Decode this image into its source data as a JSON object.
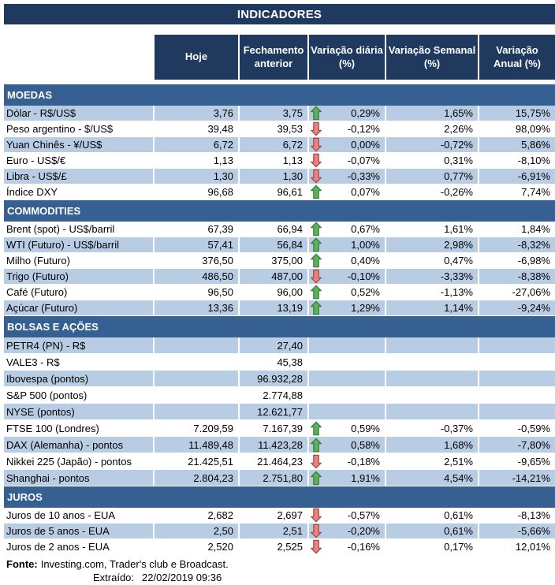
{
  "title": "INDICADORES",
  "colors": {
    "header_navy": "#1F3A5E",
    "section_blue": "#366092",
    "row_shaded_blue": "#B8CCE4",
    "up_arrow_fill": "#5BB25A",
    "up_arrow_stroke": "#357A38",
    "down_arrow_fill": "#E8837E",
    "down_arrow_stroke": "#9C4744"
  },
  "columns": [
    "",
    "Hoje",
    "Fechamento anterior",
    "Variação diária (%)",
    "Variação Semanal (%)",
    "Variação Anual (%)"
  ],
  "sections": [
    {
      "name": "MOEDAS",
      "start_shaded": true,
      "rows": [
        {
          "label": "Dólar - R$/US$",
          "hoje": "3,76",
          "fechamento": "3,75",
          "arrow": "up",
          "diaria": "0,29%",
          "semanal": "1,65%",
          "anual": "15,75%"
        },
        {
          "label": "Peso argentino - $/US$",
          "hoje": "39,48",
          "fechamento": "39,53",
          "arrow": "down",
          "diaria": "-0,12%",
          "semanal": "2,26%",
          "anual": "98,09%"
        },
        {
          "label": "Yuan Chinês - ¥/US$",
          "hoje": "6,72",
          "fechamento": "6,72",
          "arrow": "down",
          "diaria": "0,00%",
          "semanal": "-0,72%",
          "anual": "5,86%"
        },
        {
          "label": "Euro - US$/€",
          "hoje": "1,13",
          "fechamento": "1,13",
          "arrow": "down",
          "diaria": "-0,07%",
          "semanal": "0,31%",
          "anual": "-8,10%"
        },
        {
          "label": "Libra - US$/£",
          "hoje": "1,30",
          "fechamento": "1,30",
          "arrow": "down",
          "diaria": "-0,33%",
          "semanal": "0,77%",
          "anual": "-6,91%"
        },
        {
          "label": "Índice DXY",
          "hoje": "96,68",
          "fechamento": "96,61",
          "arrow": "up",
          "diaria": "0,07%",
          "semanal": "-0,26%",
          "anual": "7,74%"
        }
      ]
    },
    {
      "name": "COMMODITIES",
      "start_shaded": false,
      "rows": [
        {
          "label": "Brent (spot) - US$/barril",
          "hoje": "67,39",
          "fechamento": "66,94",
          "arrow": "up",
          "diaria": "0,67%",
          "semanal": "1,61%",
          "anual": "1,84%"
        },
        {
          "label": "WTI (Futuro) - US$/barril",
          "hoje": "57,41",
          "fechamento": "56,84",
          "arrow": "up",
          "diaria": "1,00%",
          "semanal": "2,98%",
          "anual": "-8,32%"
        },
        {
          "label": "Milho (Futuro)",
          "hoje": "376,50",
          "fechamento": "375,00",
          "arrow": "up",
          "diaria": "0,40%",
          "semanal": "0,47%",
          "anual": "-6,98%"
        },
        {
          "label": "Trigo (Futuro)",
          "hoje": "486,50",
          "fechamento": "487,00",
          "arrow": "down",
          "diaria": "-0,10%",
          "semanal": "-3,33%",
          "anual": "-8,38%"
        },
        {
          "label": "Café (Futuro)",
          "hoje": "96,50",
          "fechamento": "96,00",
          "arrow": "up",
          "diaria": "0,52%",
          "semanal": "-1,13%",
          "anual": "-27,06%"
        },
        {
          "label": "Açúcar (Futuro)",
          "hoje": "13,36",
          "fechamento": "13,19",
          "arrow": "up",
          "diaria": "1,29%",
          "semanal": "1,14%",
          "anual": "-9,24%"
        }
      ]
    },
    {
      "name": "BOLSAS E AÇÕES",
      "start_shaded": true,
      "rows": [
        {
          "label": "PETR4 (PN) - R$",
          "hoje": "",
          "fechamento": "27,40",
          "arrow": "",
          "diaria": "",
          "semanal": "",
          "anual": ""
        },
        {
          "label": "VALE3 - R$",
          "hoje": "",
          "fechamento": "45,38",
          "arrow": "",
          "diaria": "",
          "semanal": "",
          "anual": ""
        },
        {
          "label": "Ibovespa (pontos)",
          "hoje": "",
          "fechamento": "96.932,28",
          "arrow": "",
          "diaria": "",
          "semanal": "",
          "anual": ""
        },
        {
          "label": "S&P 500 (pontos)",
          "hoje": "",
          "fechamento": "2.774,88",
          "arrow": "",
          "diaria": "",
          "semanal": "",
          "anual": ""
        },
        {
          "label": "NYSE (pontos)",
          "hoje": "",
          "fechamento": "12.621,77",
          "arrow": "",
          "diaria": "",
          "semanal": "",
          "anual": ""
        },
        {
          "label": "FTSE 100 (Londres)",
          "hoje": "7.209,59",
          "fechamento": "7.167,39",
          "arrow": "up",
          "diaria": "0,59%",
          "semanal": "-0,37%",
          "anual": "-0,59%"
        },
        {
          "label": "DAX (Alemanha) - pontos",
          "hoje": "11.489,48",
          "fechamento": "11.423,28",
          "arrow": "up",
          "diaria": "0,58%",
          "semanal": "1,68%",
          "anual": "-7,80%"
        },
        {
          "label": "Nikkei 225 (Japão) - pontos",
          "hoje": "21.425,51",
          "fechamento": "21.464,23",
          "arrow": "down",
          "diaria": "-0,18%",
          "semanal": "2,51%",
          "anual": "-9,65%"
        },
        {
          "label": "Shanghai - pontos",
          "hoje": "2.804,23",
          "fechamento": "2.751,80",
          "arrow": "up",
          "diaria": "1,91%",
          "semanal": "4,54%",
          "anual": "-14,21%"
        }
      ]
    },
    {
      "name": "JUROS",
      "start_shaded": false,
      "rows": [
        {
          "label": "Juros de 10 anos - EUA",
          "hoje": "2,682",
          "fechamento": "2,697",
          "arrow": "down",
          "diaria": "-0,57%",
          "semanal": "0,61%",
          "anual": "-8,13%"
        },
        {
          "label": "Juros de 5 anos - EUA",
          "hoje": "2,50",
          "fechamento": "2,51",
          "arrow": "down",
          "diaria": "-0,20%",
          "semanal": "0,61%",
          "anual": "-5,66%"
        },
        {
          "label": "Juros de 2 anos - EUA",
          "hoje": "2,520",
          "fechamento": "2,525",
          "arrow": "down",
          "diaria": "-0,16%",
          "semanal": "0,17%",
          "anual": "12,01%"
        }
      ]
    }
  ],
  "footer": {
    "fonte_label": "Fonte:",
    "fonte_text": "Investing.com, Trader's club e Broadcast.",
    "extraido_label": "Extraído:",
    "extraido_value": "22/02/2019 09:36"
  }
}
